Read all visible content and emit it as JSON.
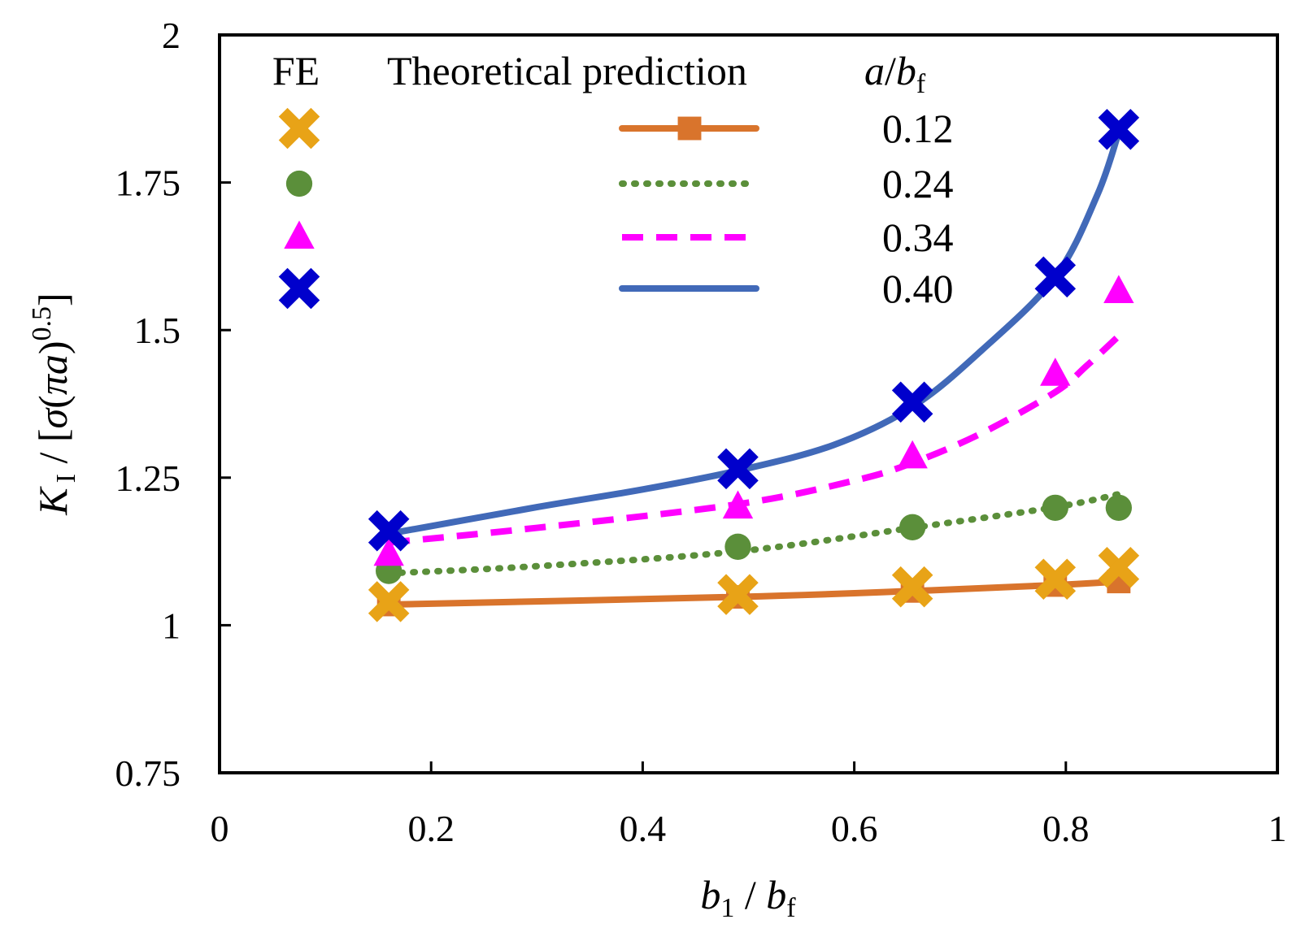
{
  "chart_data": {
    "type": "line",
    "xlabel": {
      "var": "b",
      "var_sub": "1",
      "sep": " / ",
      "var2": "b",
      "var2_sub": "f"
    },
    "ylabel": {
      "k": "K",
      "k_sub": "I",
      "mid": " / [",
      "sigma": "σ",
      "open": "(",
      "pi": "π",
      "a": "a",
      "close": ")",
      "exp": "0.5",
      "end": "]"
    },
    "xlim": [
      0,
      1
    ],
    "ylim": [
      0.75,
      2
    ],
    "xticks": [
      0,
      0.2,
      0.4,
      0.6,
      0.8,
      1
    ],
    "xtick_labels": [
      "0",
      "0.2",
      "0.4",
      "0.6",
      "0.8",
      "1"
    ],
    "yticks": [
      0.75,
      1,
      1.25,
      1.5,
      1.75,
      2
    ],
    "ytick_labels": [
      "0.75",
      "1",
      "1.25",
      "1.5",
      "1.75",
      "2"
    ],
    "legend": {
      "position": "top-left",
      "fe_header": "FE",
      "theory_header": "Theoretical prediction",
      "ratio_header": {
        "var": "a",
        "sep": "/",
        "var2": "b",
        "var2_sub": "f"
      }
    },
    "series": [
      {
        "name": "0.12",
        "color": "#d9742c",
        "fe_color": "#e8a317",
        "fe_marker": "x-filled",
        "line_style": "solid",
        "line_marker": "square",
        "theory": {
          "x": [
            0.16,
            0.49,
            0.655,
            0.79,
            0.85
          ],
          "y": [
            1.035,
            1.048,
            1.058,
            1.068,
            1.074
          ]
        },
        "fe": {
          "x": [
            0.16,
            0.49,
            0.655,
            0.79,
            0.85
          ],
          "y": [
            1.04,
            1.052,
            1.065,
            1.078,
            1.098
          ]
        }
      },
      {
        "name": "0.24",
        "color": "#5b8f3a",
        "fe_color": "#5b8f3a",
        "fe_marker": "circle",
        "line_style": "dotted",
        "line_marker": "none",
        "theory": {
          "x": [
            0.16,
            0.3,
            0.49,
            0.655,
            0.79,
            0.85
          ],
          "y": [
            1.088,
            1.1,
            1.125,
            1.165,
            1.2,
            1.222
          ]
        },
        "fe": {
          "x": [
            0.16,
            0.49,
            0.655,
            0.79,
            0.85
          ],
          "y": [
            1.092,
            1.133,
            1.166,
            1.199,
            1.199
          ]
        }
      },
      {
        "name": "0.34",
        "color": "#ff00ff",
        "fe_color": "#ff00ff",
        "fe_marker": "triangle",
        "line_style": "dashed",
        "line_marker": "none",
        "theory": {
          "x": [
            0.16,
            0.3,
            0.49,
            0.6,
            0.655,
            0.72,
            0.79,
            0.82,
            0.85
          ],
          "y": [
            1.14,
            1.165,
            1.205,
            1.245,
            1.275,
            1.325,
            1.395,
            1.44,
            1.49
          ]
        },
        "fe": {
          "x": [
            0.16,
            0.49,
            0.655,
            0.79,
            0.85
          ],
          "y": [
            1.12,
            1.2,
            1.285,
            1.425,
            1.565
          ]
        }
      },
      {
        "name": "0.40",
        "color": "#4169b8",
        "fe_color": "#0000cc",
        "fe_marker": "x-filled",
        "line_style": "solid",
        "line_marker": "none",
        "theory": {
          "x": [
            0.16,
            0.3,
            0.4,
            0.49,
            0.58,
            0.655,
            0.72,
            0.79,
            0.83,
            0.85
          ],
          "y": [
            1.155,
            1.2,
            1.23,
            1.262,
            1.305,
            1.37,
            1.465,
            1.59,
            1.73,
            1.835
          ]
        },
        "fe": {
          "x": [
            0.16,
            0.49,
            0.655,
            0.79,
            0.85
          ],
          "y": [
            1.16,
            1.265,
            1.378,
            1.59,
            1.84
          ]
        }
      }
    ]
  }
}
